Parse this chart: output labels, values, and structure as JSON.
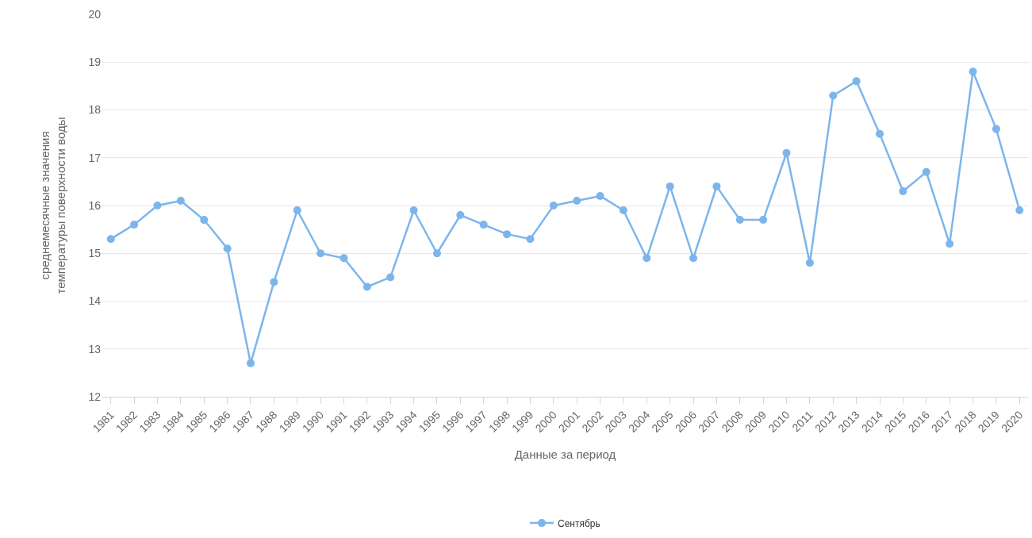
{
  "chart_data": {
    "type": "line",
    "xlabel": "Данные за период",
    "ylabel": "среднемесячные значения\nтемпературы поверхности воды",
    "categories": [
      "1981",
      "1982",
      "1983",
      "1984",
      "1985",
      "1986",
      "1987",
      "1988",
      "1989",
      "1990",
      "1991",
      "1992",
      "1993",
      "1994",
      "1995",
      "1996",
      "1997",
      "1998",
      "1999",
      "2000",
      "2001",
      "2002",
      "2003",
      "2004",
      "2005",
      "2006",
      "2007",
      "2008",
      "2009",
      "2010",
      "2011",
      "2012",
      "2013",
      "2014",
      "2015",
      "2016",
      "2017",
      "2018",
      "2019",
      "2020"
    ],
    "series": [
      {
        "name": "Сентябрь",
        "color": "#7cb5ec",
        "values": [
          15.3,
          15.6,
          16.0,
          16.1,
          15.7,
          15.1,
          12.7,
          14.4,
          15.9,
          15.0,
          14.9,
          14.3,
          14.5,
          15.9,
          15.0,
          15.8,
          15.6,
          15.4,
          15.3,
          16.0,
          16.1,
          16.2,
          15.9,
          14.9,
          16.4,
          14.9,
          16.4,
          15.7,
          15.7,
          17.1,
          14.8,
          18.3,
          18.6,
          17.5,
          16.3,
          16.7,
          15.2,
          18.8,
          17.6,
          15.9
        ]
      }
    ],
    "ylim": [
      12,
      20
    ],
    "yticks": [
      12,
      13,
      14,
      15,
      16,
      17,
      18,
      19,
      20
    ],
    "grid": "y",
    "legend": "bottom",
    "marker": "circle",
    "line_style": "solid"
  }
}
